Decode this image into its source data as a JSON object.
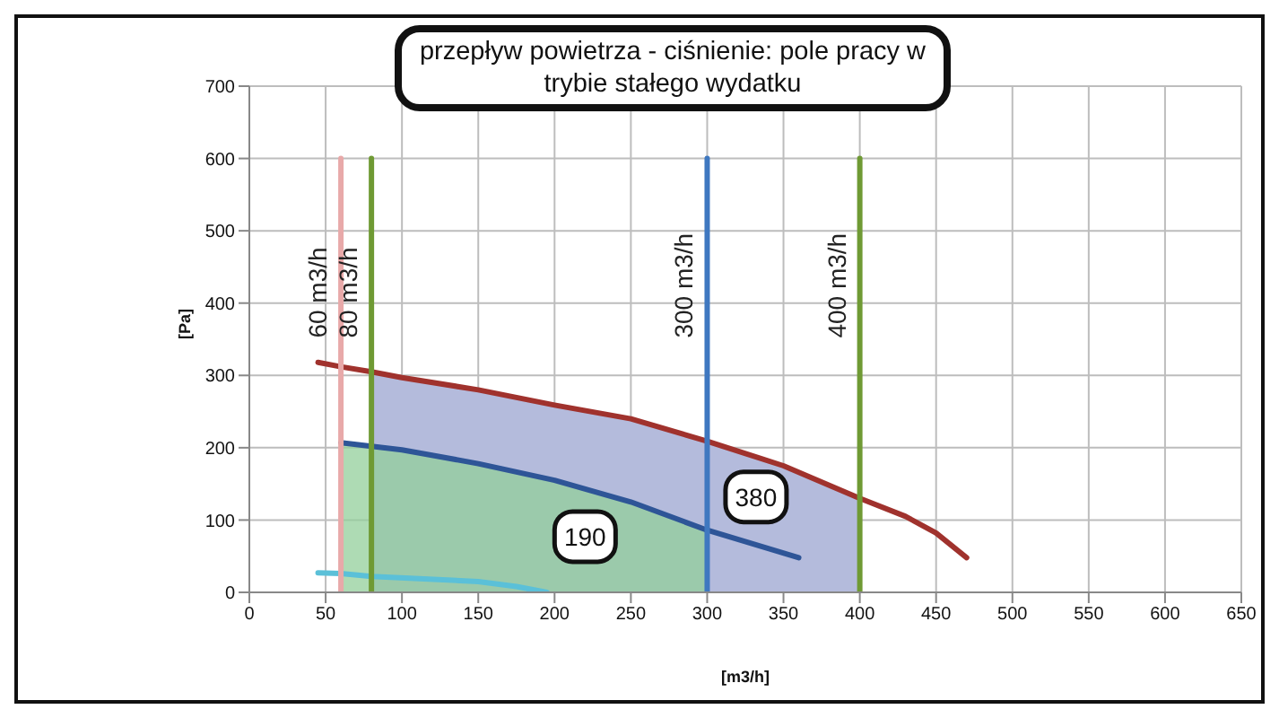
{
  "chart_data": {
    "type": "line",
    "title": "przepływ powietrza - ciśnienie: pole pracy w trybie stałego wydatku",
    "xlabel": "[m3/h]",
    "ylabel": "[Pa]",
    "xlim": [
      0,
      650
    ],
    "xticks": [
      0,
      50,
      100,
      150,
      200,
      250,
      300,
      350,
      400,
      450,
      500,
      550,
      600,
      650
    ],
    "ylim": [
      0,
      700
    ],
    "yticks": [
      0,
      100,
      200,
      300,
      400,
      500,
      600,
      700
    ],
    "grid": true,
    "legend": false,
    "marker": "none",
    "line_style": "solid",
    "series": [
      {
        "type": "area",
        "color": "#b4bbdc",
        "x": [
          80,
          100,
          150,
          200,
          250,
          300,
          350,
          400
        ],
        "values": [
          305,
          297,
          280,
          259,
          240,
          209,
          175,
          130
        ]
      },
      {
        "type": "area",
        "color": "#93cf9b",
        "x": [
          60,
          100,
          150,
          200,
          250,
          300
        ],
        "values": [
          207,
          197,
          178,
          155,
          125,
          86
        ]
      },
      {
        "color": "#a0322d",
        "x": [
          45,
          60,
          80,
          100,
          150,
          200,
          250,
          300,
          350,
          400,
          430,
          450,
          470
        ],
        "values": [
          318,
          312,
          305,
          297,
          280,
          259,
          240,
          209,
          175,
          130,
          105,
          82,
          48
        ]
      },
      {
        "color": "#2e5597",
        "x": [
          60,
          100,
          150,
          200,
          250,
          300,
          360
        ],
        "values": [
          207,
          197,
          178,
          155,
          125,
          86,
          48
        ]
      },
      {
        "color": "#5bc0d8",
        "x": [
          45,
          60,
          80,
          150,
          175,
          195
        ],
        "values": [
          27,
          26,
          22,
          15,
          8,
          0
        ]
      },
      {
        "name": "60 m3/h",
        "color": "#e8a9a9",
        "x": [
          60,
          60
        ],
        "values": [
          0,
          600
        ]
      },
      {
        "name": "80 m3/h",
        "color": "#6f9a34",
        "x": [
          80,
          80
        ],
        "values": [
          0,
          600
        ]
      },
      {
        "name": "300 m3/h",
        "color": "#3f78c0",
        "x": [
          300,
          300
        ],
        "values": [
          0,
          600
        ]
      },
      {
        "name": "400 m3/h",
        "color": "#6f9a34",
        "x": [
          400,
          400
        ],
        "values": [
          0,
          600
        ]
      }
    ],
    "annotations": [
      {
        "text": "190",
        "x": 220,
        "y": 77
      },
      {
        "text": "380",
        "x": 332,
        "y": 132
      }
    ]
  }
}
